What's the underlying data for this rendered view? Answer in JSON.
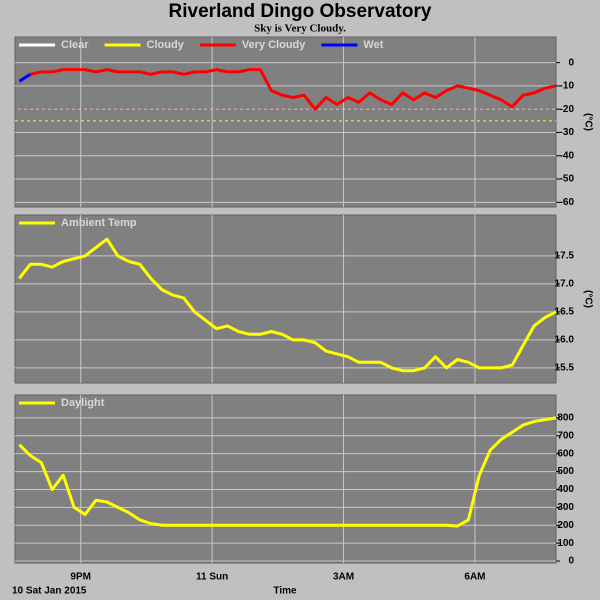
{
  "title": "Riverland Dingo Observatory",
  "subtitle": "Sky is Very Cloudy.",
  "x_label": "Time",
  "date_label": "10 Sat Jan 2015",
  "chart_data": [
    {
      "type": "line",
      "y_label": "(°C)",
      "x": [
        19.6,
        19.85,
        20.1,
        20.35,
        20.6,
        20.85,
        21.1,
        21.35,
        21.6,
        21.85,
        22.1,
        22.35,
        22.6,
        22.85,
        23.1,
        23.35,
        23.6,
        23.85,
        24.1,
        24.35,
        24.6,
        24.85,
        25.1,
        25.35,
        25.6,
        25.85,
        26.1,
        26.35,
        26.6,
        26.85,
        27.1,
        27.35,
        27.6,
        27.85,
        28.1,
        28.35,
        28.6,
        28.85,
        29.1,
        29.35,
        29.6,
        29.85,
        30.1,
        30.35,
        30.6,
        30.85,
        31.1,
        31.35,
        31.6,
        31.85
      ],
      "xlim": [
        19.5,
        31.85
      ],
      "xticks": [
        21,
        24,
        27,
        30
      ],
      "ylim": [
        -62,
        11
      ],
      "yticks": [
        0,
        -10,
        -20,
        -30,
        -40,
        -50,
        -60
      ],
      "grid": true,
      "thresholds": [
        {
          "value": -20,
          "color": "#ff3030"
        },
        {
          "value": -25,
          "color": "#ffff00"
        }
      ],
      "series": [
        {
          "name": "Clear",
          "color": "#ffffff",
          "values": [
            null,
            null,
            null,
            null,
            null,
            null,
            null,
            null,
            null,
            null,
            null,
            null,
            null,
            null,
            null,
            null,
            null,
            null,
            null,
            null,
            null,
            null,
            null,
            null,
            null,
            null,
            null,
            null,
            null,
            null,
            null,
            null,
            null,
            null,
            null,
            null,
            null,
            null,
            null,
            null,
            null,
            null,
            null,
            null,
            null,
            null,
            null,
            null,
            null,
            null
          ]
        },
        {
          "name": "Cloudy",
          "color": "#ffff00",
          "values": [
            null,
            null,
            null,
            null,
            null,
            null,
            null,
            null,
            null,
            null,
            null,
            null,
            null,
            null,
            null,
            null,
            null,
            null,
            null,
            null,
            null,
            null,
            null,
            null,
            null,
            null,
            null,
            null,
            null,
            null,
            null,
            null,
            null,
            null,
            null,
            null,
            null,
            null,
            null,
            null,
            null,
            null,
            null,
            null,
            null,
            null,
            null,
            null,
            null,
            null
          ]
        },
        {
          "name": "Very Cloudy",
          "color": "#ff0000",
          "values": [
            null,
            -5,
            -4,
            -4,
            -3,
            -3,
            -3,
            -4,
            -3,
            -4,
            -4,
            -4,
            -5,
            -4,
            -4,
            -5,
            -4,
            -4,
            -3,
            -4,
            -4,
            -3,
            -3,
            -12,
            -14,
            -15,
            -14,
            -20,
            -15,
            -18,
            -15,
            -17,
            -13,
            -16,
            -18,
            -13,
            -16,
            -13,
            -15,
            -12,
            -10,
            -11,
            -12,
            -14,
            -16,
            -19,
            -14,
            -13,
            -11,
            -10
          ]
        },
        {
          "name": "Wet",
          "color": "#0000ff",
          "values": [
            -8,
            -5,
            null,
            null,
            null,
            null,
            null,
            null,
            null,
            null,
            null,
            null,
            null,
            null,
            null,
            null,
            null,
            null,
            null,
            null,
            null,
            null,
            null,
            null,
            null,
            null,
            null,
            null,
            null,
            null,
            null,
            null,
            null,
            null,
            null,
            null,
            null,
            null,
            null,
            null,
            null,
            null,
            null,
            null,
            null,
            null,
            null,
            null,
            null,
            null
          ]
        }
      ]
    },
    {
      "type": "line",
      "y_label": "(°C)",
      "x": [
        19.6,
        19.85,
        20.1,
        20.35,
        20.6,
        20.85,
        21.1,
        21.35,
        21.6,
        21.85,
        22.1,
        22.35,
        22.6,
        22.85,
        23.1,
        23.35,
        23.6,
        23.85,
        24.1,
        24.35,
        24.6,
        24.85,
        25.1,
        25.35,
        25.6,
        25.85,
        26.1,
        26.35,
        26.6,
        26.85,
        27.1,
        27.35,
        27.6,
        27.85,
        28.1,
        28.35,
        28.6,
        28.85,
        29.1,
        29.35,
        29.6,
        29.85,
        30.1,
        30.35,
        30.6,
        30.85,
        31.1,
        31.35,
        31.6,
        31.85
      ],
      "xlim": [
        19.5,
        31.85
      ],
      "xticks": [
        21,
        24,
        27,
        30
      ],
      "ylim": [
        15.23,
        18.23
      ],
      "yticks": [
        15.5,
        {
          "value": 16,
          "label": "16.0"
        },
        16.5,
        {
          "value": 17,
          "label": "17.0"
        },
        17.5
      ],
      "grid": true,
      "series": [
        {
          "name": "Ambient Temp",
          "color": "#ffff00",
          "values": [
            17.1,
            17.35,
            17.35,
            17.3,
            17.4,
            17.45,
            17.5,
            17.65,
            17.8,
            17.5,
            17.4,
            17.35,
            17.1,
            16.9,
            16.8,
            16.75,
            16.5,
            16.35,
            16.2,
            16.25,
            16.15,
            16.1,
            16.1,
            16.15,
            16.1,
            16.0,
            16.0,
            15.95,
            15.8,
            15.75,
            15.7,
            15.6,
            15.6,
            15.6,
            15.5,
            15.45,
            15.45,
            15.5,
            15.7,
            15.5,
            15.65,
            15.6,
            15.5,
            15.5,
            15.5,
            15.55,
            15.9,
            16.25,
            16.4,
            16.5
          ]
        }
      ]
    },
    {
      "type": "line",
      "x": [
        19.6,
        19.85,
        20.1,
        20.35,
        20.6,
        20.85,
        21.1,
        21.35,
        21.6,
        21.85,
        22.1,
        22.35,
        22.6,
        22.85,
        23.1,
        23.35,
        23.6,
        23.85,
        24.1,
        24.35,
        24.6,
        24.85,
        25.1,
        25.35,
        25.6,
        25.85,
        26.1,
        26.35,
        26.6,
        26.85,
        27.1,
        27.35,
        27.6,
        27.85,
        28.1,
        28.35,
        28.6,
        28.85,
        29.1,
        29.35,
        29.6,
        29.85,
        30.1,
        30.35,
        30.6,
        30.85,
        31.1,
        31.35,
        31.6,
        31.85
      ],
      "xlim": [
        19.5,
        31.85
      ],
      "xticks": [
        {
          "value": 21,
          "label": "9PM"
        },
        {
          "value": 24,
          "label": "11 Sun"
        },
        {
          "value": 27,
          "label": "3AM"
        },
        {
          "value": 30,
          "label": "6AM"
        }
      ],
      "ylim": [
        -11,
        928
      ],
      "yticks": [
        0,
        100,
        200,
        300,
        400,
        500,
        600,
        700,
        800
      ],
      "grid": true,
      "series": [
        {
          "name": "Daylight",
          "color": "#ffff00",
          "values": [
            650,
            590,
            550,
            400,
            480,
            300,
            260,
            340,
            330,
            300,
            270,
            230,
            210,
            200,
            200,
            200,
            200,
            200,
            200,
            200,
            200,
            200,
            200,
            200,
            200,
            200,
            200,
            200,
            200,
            200,
            200,
            200,
            200,
            200,
            200,
            200,
            200,
            200,
            200,
            200,
            195,
            230,
            480,
            620,
            680,
            720,
            760,
            780,
            790,
            800
          ]
        }
      ]
    }
  ]
}
